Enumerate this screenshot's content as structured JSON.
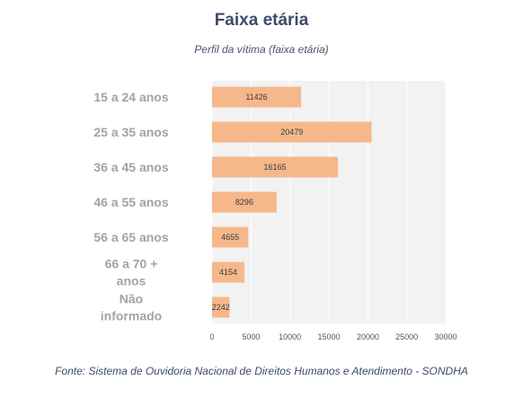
{
  "title": "Faixa etária",
  "subtitle": "Perfil da vítima (faixa etária)",
  "source": "Fonte: Sistema de Ouvidoria Nacional de Direitos Humanos e Atendimento - SONDHA",
  "colors": {
    "bar": "#f6b88a",
    "plot_bg": "#f2f2f2",
    "grid": "#ffffff",
    "label": "#a3a3a3"
  },
  "chart_data": {
    "type": "bar",
    "orientation": "horizontal",
    "categories": [
      [
        "15 a 24 anos"
      ],
      [
        "25 a 35 anos"
      ],
      [
        "36 a 45 anos"
      ],
      [
        "46 a 55 anos"
      ],
      [
        "56 a 65 anos"
      ],
      [
        "66  a 70 +",
        "anos"
      ],
      [
        "Não",
        "informado"
      ]
    ],
    "values": [
      11426,
      20479,
      16165,
      8296,
      4655,
      4154,
      2242
    ],
    "xlim": [
      0,
      30000
    ],
    "xticks": [
      0,
      5000,
      10000,
      15000,
      20000,
      25000,
      30000
    ],
    "grid": true,
    "data_labels": true
  }
}
